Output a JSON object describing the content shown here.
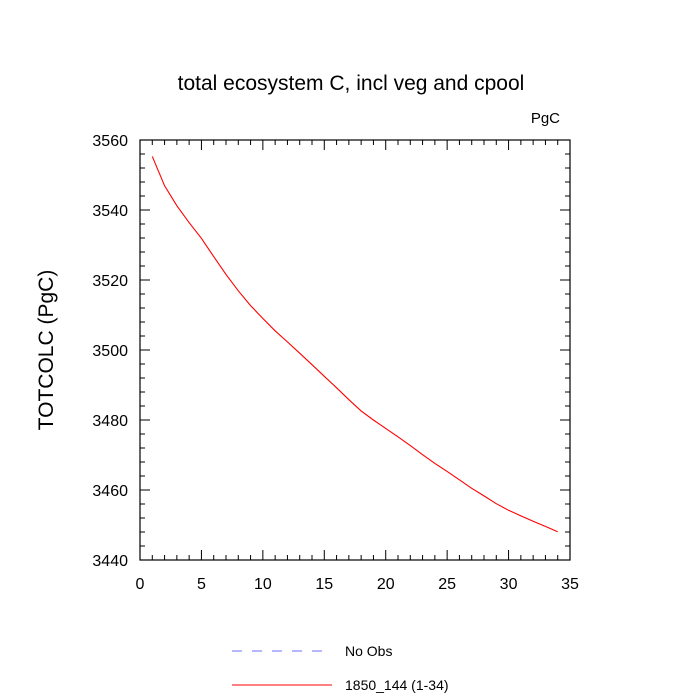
{
  "chart_data": {
    "type": "line",
    "title": "total ecosystem C, incl veg and cpool",
    "units": "PgC",
    "ylabel": "TOTCOLC  (PgC)",
    "xlabel": "",
    "xlim": [
      0,
      35
    ],
    "ylim": [
      3440,
      3560
    ],
    "xticks": [
      0,
      5,
      10,
      15,
      20,
      25,
      30,
      35
    ],
    "xtick_labels": [
      "0",
      "5",
      "10",
      "15",
      "20",
      "25",
      "30",
      "35"
    ],
    "yticks": [
      3440,
      3460,
      3480,
      3500,
      3520,
      3540,
      3560
    ],
    "ytick_labels": [
      "3440",
      "3460",
      "3480",
      "3500",
      "3520",
      "3540",
      "3560"
    ],
    "series": [
      {
        "name": "1850_144 (1-34)",
        "color": "#ff0000",
        "dash": "solid",
        "x": [
          1,
          2,
          3,
          4,
          5,
          6,
          7,
          8,
          9,
          10,
          11,
          12,
          13,
          14,
          15,
          16,
          17,
          18,
          19,
          20,
          21,
          22,
          23,
          24,
          25,
          26,
          27,
          28,
          29,
          30,
          31,
          32,
          33,
          34
        ],
        "values": [
          3555.3,
          3546.9,
          3541.2,
          3536.4,
          3531.9,
          3526.7,
          3521.6,
          3516.9,
          3512.7,
          3509.0,
          3505.5,
          3502.3,
          3499.1,
          3495.8,
          3492.5,
          3489.2,
          3485.8,
          3482.6,
          3480.0,
          3477.6,
          3475.2,
          3472.7,
          3470.1,
          3467.6,
          3465.3,
          3462.9,
          3460.5,
          3458.3,
          3456.1,
          3454.2,
          3452.6,
          3451.1,
          3449.6,
          3448.1
        ]
      }
    ],
    "legend": [
      {
        "label": "No Obs",
        "color": "#6f6fff",
        "dash": "dashed"
      },
      {
        "label": "1850_144 (1-34)",
        "color": "#ff0000",
        "dash": "solid"
      }
    ],
    "legend_position": "bottom-center"
  }
}
